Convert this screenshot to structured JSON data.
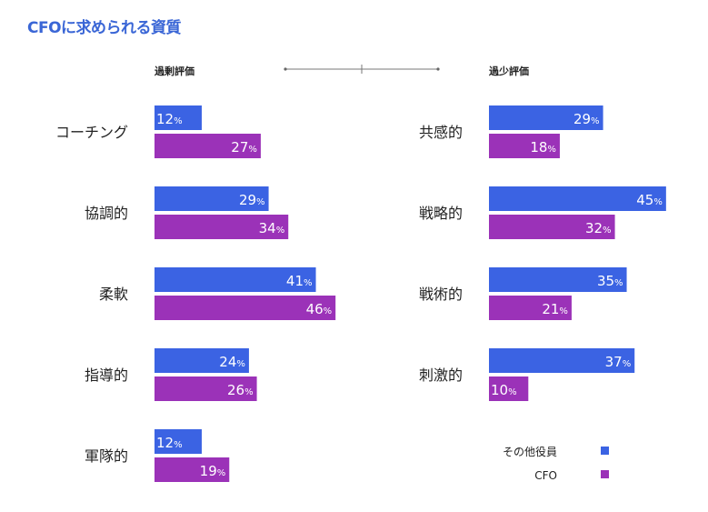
{
  "title": "CFOに求められる資質",
  "chart_data": {
    "type": "bar",
    "orientation": "horizontal",
    "title": "CFOに求められる資質",
    "unit": "%",
    "colors": {
      "その他役員": "#3b63e3",
      "CFO": "#9b32b8"
    },
    "legend": {
      "position": "bottom-right",
      "entries": [
        "その他役員",
        "CFO"
      ]
    },
    "panels": [
      {
        "heading": "過剰評価",
        "categories": [
          "コーチング",
          "協調的",
          "柔軟",
          "指導的",
          "軍隊的"
        ],
        "series": [
          {
            "name": "その他役員",
            "values": [
              12,
              29,
              41,
              24,
              12
            ]
          },
          {
            "name": "CFO",
            "values": [
              27,
              34,
              46,
              26,
              19
            ]
          }
        ]
      },
      {
        "heading": "過少評価",
        "categories": [
          "共感的",
          "戦略的",
          "戦術的",
          "刺激的"
        ],
        "series": [
          {
            "name": "その他役員",
            "values": [
              29,
              45,
              35,
              37
            ]
          },
          {
            "name": "CFO",
            "values": [
              18,
              32,
              21,
              10
            ]
          }
        ]
      }
    ]
  }
}
